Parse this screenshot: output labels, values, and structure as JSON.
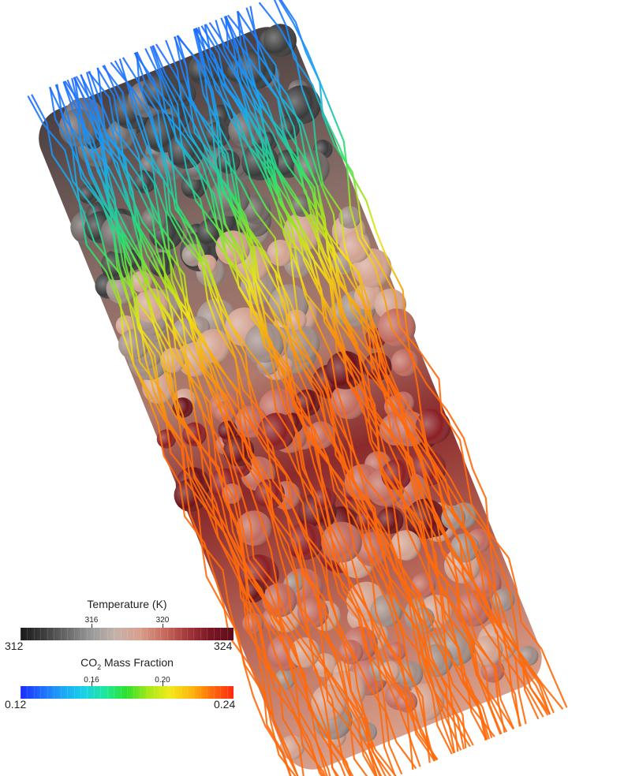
{
  "scene": {
    "subject": "packed-bed-streamlines",
    "particle_color_scale": [
      "#3a3a3a",
      "#6e6462",
      "#a08c86",
      "#d2a290",
      "#c06a5e",
      "#8a1f24",
      "#6b1319"
    ],
    "streamline_color_scale": [
      "#1e6bff",
      "#19a8f0",
      "#2be06f",
      "#9ae41e",
      "#f2e21a",
      "#f7a00f",
      "#ff6a0a"
    ]
  },
  "legends": {
    "temperature": {
      "title": "Temperature (K)",
      "min_label": "312",
      "max_label": "324",
      "ticks": [
        {
          "label": "316",
          "value": 316
        },
        {
          "label": "320",
          "value": 320
        }
      ],
      "range": [
        312,
        324
      ],
      "colors": [
        "#1a1a1a",
        "#3e3e3e",
        "#6b6b6b",
        "#9a9a9a",
        "#c4b2aa",
        "#d9a08d",
        "#c86f60",
        "#a63a3d",
        "#7a1625",
        "#5e0d1a"
      ]
    },
    "co2": {
      "title_prefix": "CO",
      "title_sub": "2",
      "title_suffix": " Mass Fraction",
      "min_label": "0.12",
      "max_label": "0.24",
      "ticks": [
        {
          "label": "0.16",
          "value": 0.16
        },
        {
          "label": "0.20",
          "value": 0.2
        }
      ],
      "range": [
        0.12,
        0.24
      ],
      "colors": [
        "#1a2cff",
        "#1f6cff",
        "#1aa8f5",
        "#1ad2e6",
        "#1ee89a",
        "#2ee02a",
        "#a6e81a",
        "#f2ea18",
        "#ffb80c",
        "#ff6a0a",
        "#ff2a10"
      ]
    }
  }
}
